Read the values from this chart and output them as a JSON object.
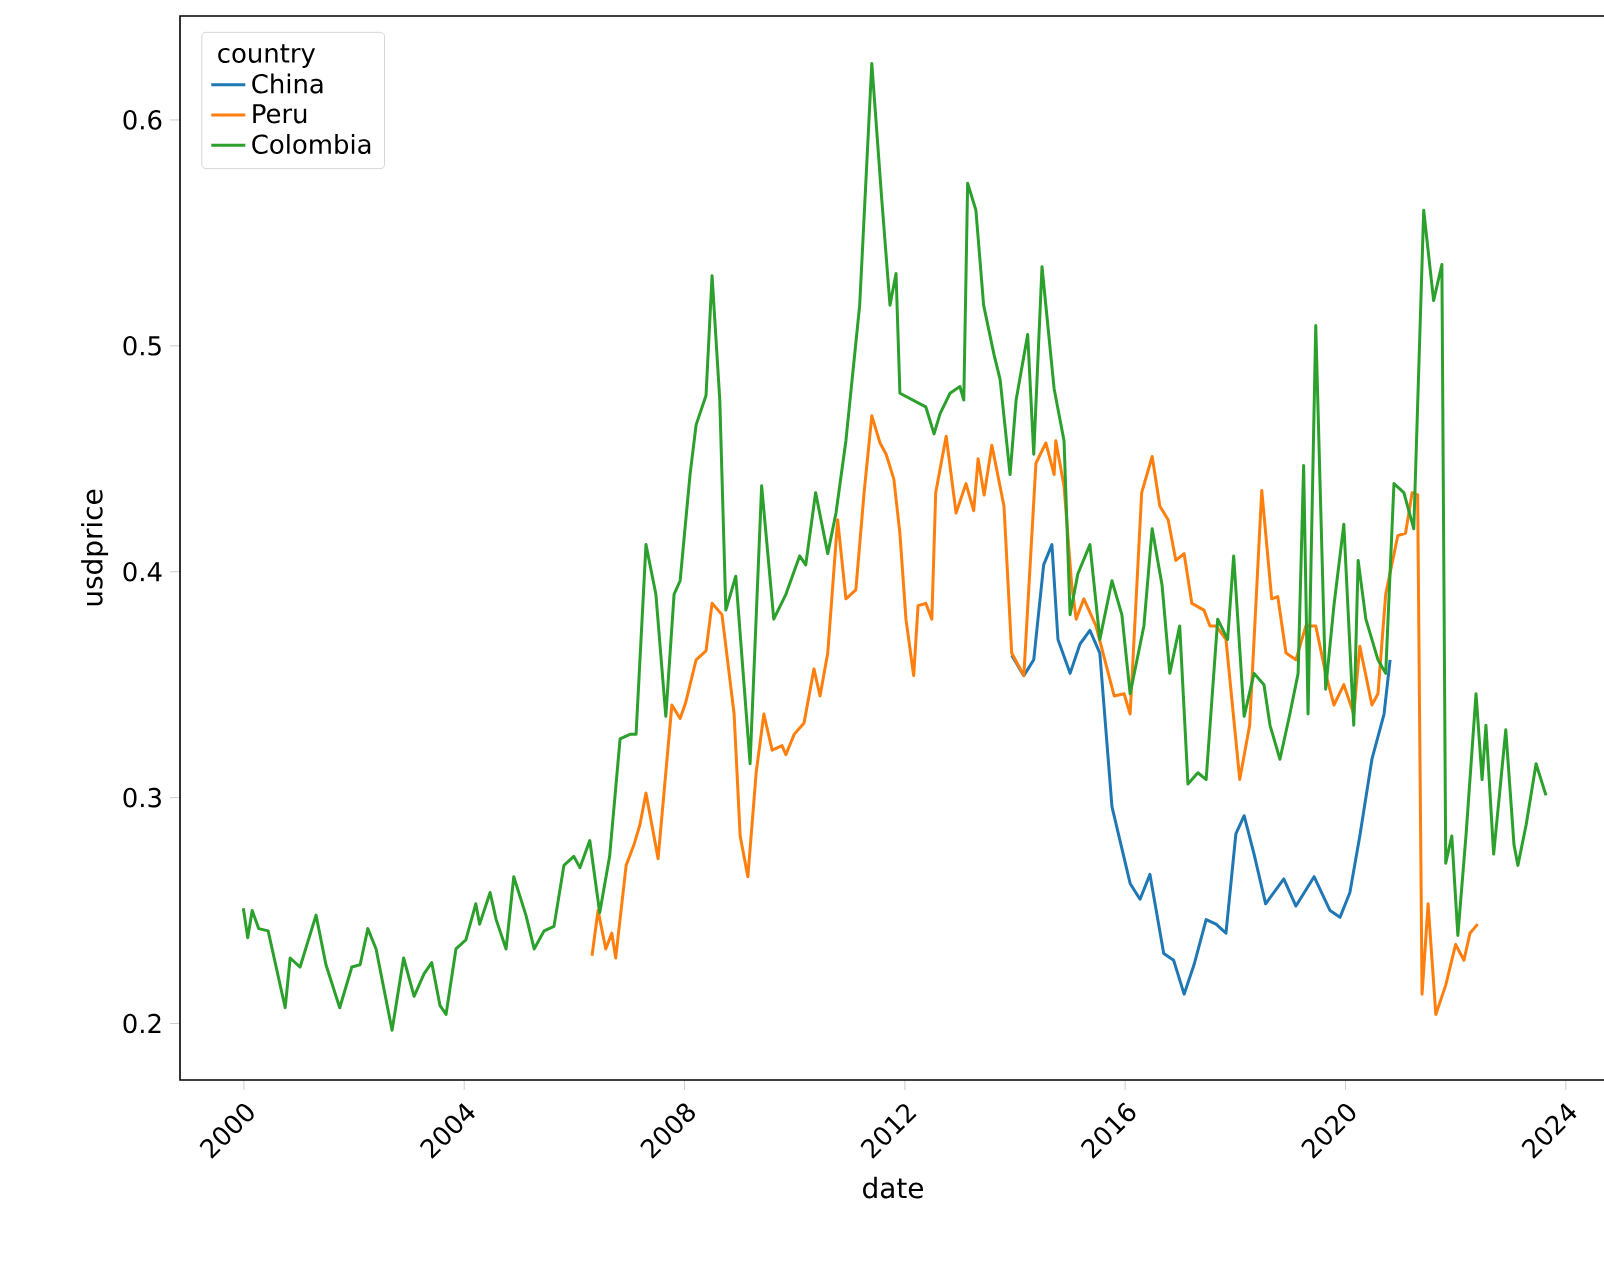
{
  "chart_data": {
    "type": "line",
    "xlabel": "date",
    "ylabel": "usdprice",
    "legend_title": "country",
    "legend": "top left",
    "xlim": [
      1998.84,
      2024.73
    ],
    "ylim": [
      0.175,
      0.646
    ],
    "xticks": [
      2000,
      2004,
      2008,
      2012,
      2016,
      2020,
      2024
    ],
    "yticks": [
      0.2,
      0.3,
      0.4,
      0.5,
      0.6
    ],
    "series": [
      {
        "name": "China",
        "color": "#1f77b4",
        "x": [
          2013.94,
          2014.16,
          2014.34,
          2014.52,
          2014.67,
          2014.78,
          2015.0,
          2015.18,
          2015.36,
          2015.54,
          2015.76,
          2016.09,
          2016.27,
          2016.45,
          2016.7,
          2016.88,
          2017.07,
          2017.25,
          2017.47,
          2017.65,
          2017.83,
          2018.01,
          2018.16,
          2018.34,
          2018.55,
          2018.88,
          2019.1,
          2019.43,
          2019.72,
          2019.9,
          2020.08,
          2020.26,
          2020.48,
          2020.7,
          2020.81
        ],
        "values": [
          0.363,
          0.354,
          0.361,
          0.403,
          0.412,
          0.37,
          0.355,
          0.368,
          0.374,
          0.364,
          0.296,
          0.262,
          0.255,
          0.266,
          0.231,
          0.228,
          0.213,
          0.226,
          0.246,
          0.244,
          0.24,
          0.284,
          0.292,
          0.275,
          0.253,
          0.264,
          0.252,
          0.265,
          0.25,
          0.247,
          0.258,
          0.283,
          0.317,
          0.337,
          0.361
        ]
      },
      {
        "name": "Peru",
        "color": "#ff7f0e",
        "x": [
          2006.32,
          2006.43,
          2006.57,
          2006.68,
          2006.75,
          2006.94,
          2007.08,
          2007.19,
          2007.3,
          2007.52,
          2007.77,
          2007.92,
          2008.02,
          2008.21,
          2008.39,
          2008.5,
          2008.68,
          2008.9,
          2009.01,
          2009.15,
          2009.3,
          2009.44,
          2009.59,
          2009.77,
          2009.84,
          2009.99,
          2010.17,
          2010.35,
          2010.46,
          2010.6,
          2010.78,
          2010.93,
          2011.11,
          2011.26,
          2011.4,
          2011.55,
          2011.66,
          2011.8,
          2011.91,
          2012.02,
          2012.16,
          2012.24,
          2012.38,
          2012.49,
          2012.56,
          2012.75,
          2012.93,
          2013.11,
          2013.25,
          2013.33,
          2013.44,
          2013.58,
          2013.8,
          2013.94,
          2014.16,
          2014.38,
          2014.56,
          2014.71,
          2014.74,
          2014.89,
          2015.03,
          2015.11,
          2015.25,
          2015.47,
          2015.8,
          2015.98,
          2016.09,
          2016.3,
          2016.49,
          2016.63,
          2016.78,
          2016.92,
          2017.07,
          2017.21,
          2017.43,
          2017.54,
          2017.65,
          2017.83,
          2018.08,
          2018.26,
          2018.48,
          2018.66,
          2018.77,
          2018.92,
          2019.1,
          2019.28,
          2019.46,
          2019.64,
          2019.79,
          2019.97,
          2020.15,
          2020.26,
          2020.48,
          2020.59,
          2020.73,
          2020.95,
          2021.09,
          2021.21,
          2021.31,
          2021.39,
          2021.5,
          2021.64,
          2021.82,
          2022.0,
          2022.15,
          2022.26,
          2022.4
        ],
        "values": [
          0.23,
          0.25,
          0.233,
          0.24,
          0.229,
          0.27,
          0.279,
          0.288,
          0.302,
          0.273,
          0.341,
          0.335,
          0.342,
          0.361,
          0.365,
          0.386,
          0.381,
          0.337,
          0.283,
          0.265,
          0.311,
          0.337,
          0.321,
          0.323,
          0.319,
          0.328,
          0.333,
          0.357,
          0.345,
          0.364,
          0.423,
          0.388,
          0.392,
          0.435,
          0.469,
          0.457,
          0.452,
          0.441,
          0.417,
          0.379,
          0.354,
          0.385,
          0.386,
          0.379,
          0.435,
          0.46,
          0.426,
          0.439,
          0.427,
          0.45,
          0.434,
          0.456,
          0.429,
          0.364,
          0.354,
          0.448,
          0.457,
          0.443,
          0.458,
          0.438,
          0.394,
          0.379,
          0.388,
          0.376,
          0.345,
          0.346,
          0.337,
          0.435,
          0.451,
          0.429,
          0.423,
          0.405,
          0.408,
          0.386,
          0.383,
          0.376,
          0.376,
          0.37,
          0.308,
          0.332,
          0.436,
          0.388,
          0.389,
          0.364,
          0.361,
          0.376,
          0.376,
          0.355,
          0.341,
          0.35,
          0.337,
          0.367,
          0.341,
          0.346,
          0.39,
          0.416,
          0.417,
          0.435,
          0.434,
          0.213,
          0.253,
          0.204,
          0.217,
          0.235,
          0.228,
          0.24,
          0.244
        ]
      },
      {
        "name": "Colombia",
        "color": "#2ca02c",
        "x": [
          1999.99,
          2000.07,
          2000.15,
          2000.27,
          2000.44,
          2000.75,
          2000.84,
          2001.02,
          2001.31,
          2001.49,
          2001.74,
          2001.96,
          2002.11,
          2002.25,
          2002.4,
          2002.69,
          2002.9,
          2003.09,
          2003.27,
          2003.41,
          2003.56,
          2003.67,
          2003.85,
          2004.03,
          2004.21,
          2004.28,
          2004.47,
          2004.58,
          2004.76,
          2004.9,
          2005.12,
          2005.27,
          2005.45,
          2005.63,
          2005.81,
          2005.99,
          2006.1,
          2006.28,
          2006.46,
          2006.64,
          2006.83,
          2007.01,
          2007.12,
          2007.3,
          2007.48,
          2007.66,
          2007.81,
          2007.92,
          2008.1,
          2008.21,
          2008.39,
          2008.5,
          2008.64,
          2008.75,
          2008.93,
          2009.19,
          2009.4,
          2009.62,
          2009.84,
          2010.09,
          2010.2,
          2010.38,
          2010.6,
          2010.75,
          2010.93,
          2011.18,
          2011.4,
          2011.58,
          2011.73,
          2011.84,
          2011.91,
          2012.38,
          2012.53,
          2012.64,
          2012.82,
          2013.0,
          2013.07,
          2013.14,
          2013.29,
          2013.43,
          2013.62,
          2013.73,
          2013.91,
          2014.02,
          2014.23,
          2014.34,
          2014.49,
          2014.71,
          2014.89,
          2015.0,
          2015.14,
          2015.36,
          2015.54,
          2015.76,
          2015.94,
          2016.09,
          2016.34,
          2016.49,
          2016.67,
          2016.81,
          2016.99,
          2017.14,
          2017.32,
          2017.47,
          2017.68,
          2017.86,
          2017.97,
          2018.16,
          2018.34,
          2018.52,
          2018.63,
          2018.81,
          2018.99,
          2019.14,
          2019.24,
          2019.32,
          2019.46,
          2019.64,
          2019.79,
          2019.97,
          2020.15,
          2020.23,
          2020.37,
          2020.59,
          2020.73,
          2020.88,
          2021.06,
          2021.24,
          2021.42,
          2021.6,
          2021.75,
          2021.82,
          2021.93,
          2022.04,
          2022.19,
          2022.37,
          2022.48,
          2022.55,
          2022.69,
          2022.91,
          2023.06,
          2023.13,
          2023.28,
          2023.46,
          2023.64
        ],
        "values": [
          0.251,
          0.238,
          0.25,
          0.242,
          0.241,
          0.207,
          0.229,
          0.225,
          0.248,
          0.226,
          0.207,
          0.225,
          0.226,
          0.242,
          0.233,
          0.197,
          0.229,
          0.212,
          0.222,
          0.227,
          0.208,
          0.204,
          0.233,
          0.237,
          0.253,
          0.244,
          0.258,
          0.246,
          0.233,
          0.265,
          0.248,
          0.233,
          0.241,
          0.243,
          0.27,
          0.274,
          0.269,
          0.281,
          0.249,
          0.274,
          0.326,
          0.328,
          0.328,
          0.412,
          0.39,
          0.336,
          0.39,
          0.396,
          0.443,
          0.465,
          0.478,
          0.531,
          0.476,
          0.383,
          0.398,
          0.315,
          0.438,
          0.379,
          0.39,
          0.407,
          0.403,
          0.435,
          0.408,
          0.426,
          0.458,
          0.518,
          0.625,
          0.565,
          0.518,
          0.532,
          0.479,
          0.473,
          0.461,
          0.47,
          0.479,
          0.482,
          0.476,
          0.572,
          0.56,
          0.518,
          0.496,
          0.485,
          0.443,
          0.476,
          0.505,
          0.452,
          0.535,
          0.481,
          0.458,
          0.381,
          0.399,
          0.412,
          0.37,
          0.396,
          0.381,
          0.346,
          0.376,
          0.419,
          0.394,
          0.355,
          0.376,
          0.306,
          0.311,
          0.308,
          0.379,
          0.37,
          0.407,
          0.336,
          0.355,
          0.35,
          0.332,
          0.317,
          0.337,
          0.355,
          0.447,
          0.337,
          0.509,
          0.348,
          0.385,
          0.421,
          0.332,
          0.405,
          0.379,
          0.361,
          0.355,
          0.439,
          0.435,
          0.419,
          0.56,
          0.52,
          0.536,
          0.271,
          0.283,
          0.239,
          0.284,
          0.346,
          0.308,
          0.332,
          0.275,
          0.33,
          0.279,
          0.27,
          0.288,
          0.315,
          0.301
        ]
      }
    ]
  }
}
